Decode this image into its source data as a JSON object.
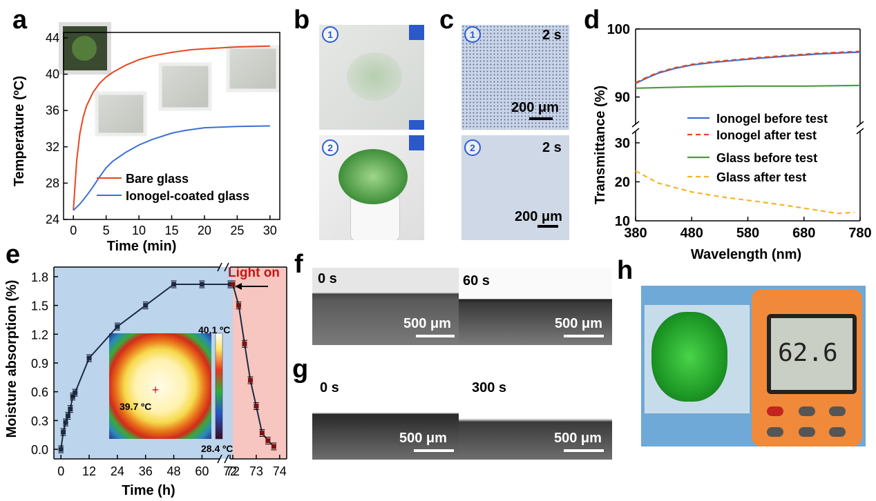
{
  "panel_letters": {
    "a": "a",
    "b": "b",
    "c": "c",
    "d": "d",
    "e": "e",
    "f": "f",
    "g": "g",
    "h": "h"
  },
  "colors": {
    "red": "#e8451e",
    "blue": "#3b6fd4",
    "green": "#4a9a3a",
    "orange": "#f5b324",
    "navy": "#1b2a45",
    "shade_blue": "#bcd4ec",
    "shade_red": "#f7c6c0",
    "marker_red": "#7a1414"
  },
  "panel_b": {
    "circle1": "1",
    "circle2": "2"
  },
  "panel_c": {
    "circle1": "1",
    "circle2": "2",
    "time1": "2 s",
    "time2": "2 s",
    "scale1": "200 μm",
    "scale2": "200 μm"
  },
  "panel_e": {
    "light_on": "Light on",
    "thermal_max": "40.1 ºC",
    "thermal_min": "28.4 ºC",
    "thermal_center": "39.7 ºC"
  },
  "panel_f": {
    "time_left": "0 s",
    "time_right": "60 s",
    "scale_left": "500 μm",
    "scale_right": "500 μm"
  },
  "panel_g": {
    "time_left": "0 s",
    "time_right": "300 s",
    "scale_left": "500 μm",
    "scale_right": "500 μm"
  },
  "panel_h": {
    "display": "62.6"
  },
  "chart_data": [
    {
      "id": "a",
      "type": "line",
      "title": "",
      "xlabel": "Time (min)",
      "ylabel": "Temperature (ºC)",
      "xlim": [
        -1.5,
        31.5
      ],
      "ylim": [
        24,
        44.6
      ],
      "xticks": [
        0,
        5,
        10,
        15,
        20,
        25,
        30
      ],
      "yticks": [
        24,
        28,
        32,
        36,
        40,
        44
      ],
      "legend_position": "bottom-right",
      "series": [
        {
          "name": "Bare glass",
          "color": "#e8451e",
          "x": [
            0,
            0.5,
            1,
            1.5,
            2,
            3,
            4,
            5,
            6,
            8,
            10,
            12,
            15,
            18,
            20,
            25,
            30
          ],
          "y": [
            25,
            30.5,
            33.5,
            35.3,
            36.5,
            38.0,
            39.0,
            39.7,
            40.2,
            41.0,
            41.6,
            42.0,
            42.4,
            42.7,
            42.8,
            43.0,
            43.1
          ]
        },
        {
          "name": "Ionogel-coated glass",
          "color": "#3b6fd4",
          "x": [
            0,
            1,
            2,
            3,
            4,
            5,
            6,
            8,
            10,
            12,
            15,
            17,
            20,
            25,
            30
          ],
          "y": [
            25,
            25.7,
            26.6,
            27.6,
            28.7,
            29.7,
            30.4,
            31.4,
            32.2,
            32.8,
            33.5,
            33.8,
            34.1,
            34.25,
            34.3
          ]
        }
      ]
    },
    {
      "id": "d",
      "type": "line",
      "title": "",
      "xlabel": "Wavelength (nm)",
      "ylabel": "Transmittance (%)",
      "xlim": [
        380,
        780
      ],
      "ylim_upper": [
        86,
        100
      ],
      "ylim_lower": [
        10,
        33
      ],
      "xticks": [
        380,
        480,
        580,
        680,
        780
      ],
      "yticks_upper": [
        90,
        100
      ],
      "yticks_lower": [
        10,
        20,
        30
      ],
      "legend_position": "right",
      "series": [
        {
          "name": "Ionogel before test",
          "color": "#3b6fd4",
          "style": "solid",
          "x": [
            380,
            400,
            420,
            450,
            480,
            520,
            560,
            600,
            650,
            700,
            750,
            780
          ],
          "y": [
            92.0,
            92.8,
            93.5,
            94.2,
            94.7,
            95.1,
            95.4,
            95.7,
            96.0,
            96.3,
            96.5,
            96.6
          ]
        },
        {
          "name": "Ionogel after test",
          "color": "#e8451e",
          "style": "dashed",
          "x": [
            380,
            400,
            420,
            450,
            480,
            520,
            560,
            600,
            650,
            700,
            750,
            780
          ],
          "y": [
            92.1,
            92.9,
            93.6,
            94.3,
            94.8,
            95.2,
            95.5,
            95.8,
            96.1,
            96.4,
            96.6,
            96.7
          ]
        },
        {
          "name": "Glass before test",
          "color": "#4a9a3a",
          "style": "solid",
          "x": [
            380,
            480,
            580,
            680,
            780
          ],
          "y": [
            91.3,
            91.5,
            91.6,
            91.6,
            91.7
          ]
        },
        {
          "name": "Glass after test",
          "color": "#f5b324",
          "style": "dashed",
          "x": [
            380,
            420,
            480,
            540,
            600,
            660,
            700,
            740,
            770
          ],
          "y": [
            22.8,
            19.7,
            17.4,
            16.0,
            14.9,
            13.7,
            12.8,
            11.9,
            12.2
          ]
        }
      ]
    },
    {
      "id": "e",
      "type": "line",
      "title": "",
      "xlabel": "Time (h)",
      "ylabel": "Moisture absorption (%)",
      "ylim": [
        -0.1,
        1.9
      ],
      "yticks": [
        0.0,
        0.3,
        0.6,
        0.9,
        1.2,
        1.5,
        1.8
      ],
      "xtick_labels": [
        "0",
        "12",
        "24",
        "36",
        "48",
        "60",
        "72",
        "72",
        "73",
        "74"
      ],
      "xticks_part1": [
        0,
        12,
        24,
        36,
        48,
        60
      ],
      "xticks_part2": [
        72,
        73,
        74
      ],
      "xlim_part1": [
        -3,
        69
      ],
      "xlim_part2": [
        72,
        74.3
      ],
      "color": "#1b2a45",
      "series": [
        {
          "name": "",
          "x": [
            0,
            1,
            2,
            3,
            4,
            5,
            6,
            12,
            24,
            36,
            48,
            60,
            72
          ],
          "y": [
            0.0,
            0.18,
            0.28,
            0.35,
            0.42,
            0.55,
            0.59,
            0.95,
            1.28,
            1.5,
            1.72,
            1.72,
            1.72
          ]
        },
        {
          "name": "",
          "x": [
            72,
            72.25,
            72.5,
            72.75,
            73,
            73.25,
            73.5,
            73.75
          ],
          "y": [
            1.72,
            1.5,
            1.1,
            0.72,
            0.45,
            0.17,
            0.09,
            0.03
          ]
        }
      ]
    }
  ]
}
